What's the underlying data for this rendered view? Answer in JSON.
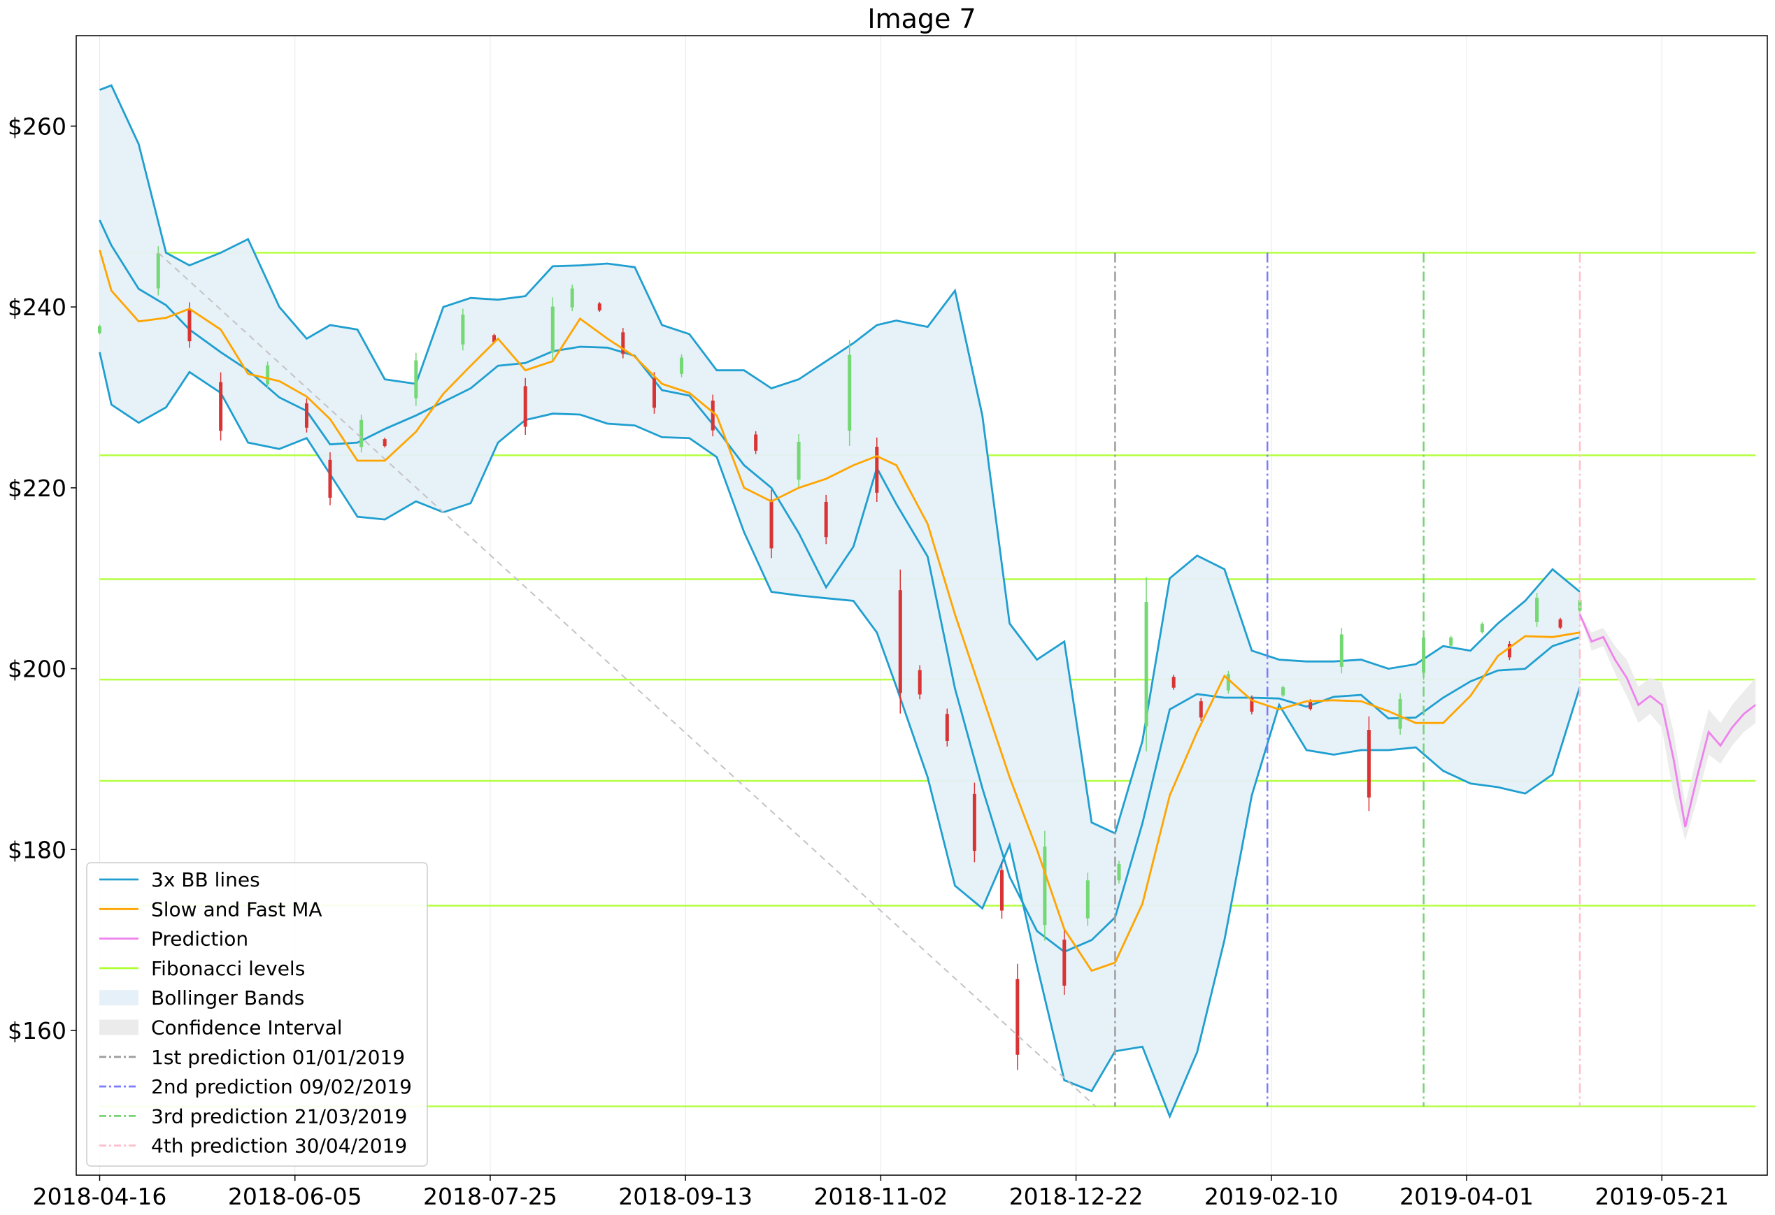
{
  "chart_data": {
    "type": "line",
    "title": "Image 7",
    "xlabel": "",
    "ylabel": "",
    "x_ticks": [
      "2018-04-16",
      "2018-06-05",
      "2018-07-25",
      "2018-09-13",
      "2018-11-02",
      "2018-12-22",
      "2019-02-10",
      "2019-04-01",
      "2019-05-21"
    ],
    "y_ticks": [
      "$160",
      "$180",
      "$200",
      "$220",
      "$240",
      "$260"
    ],
    "xlim": [
      "2018-04-10",
      "2019-06-17"
    ],
    "ylim": [
      144,
      270
    ],
    "grid": "vertical",
    "legend_position": "lower-left",
    "legend": [
      {
        "label": "3x BB lines",
        "kind": "line",
        "color": "#1f9fd0"
      },
      {
        "label": "Slow and Fast MA",
        "kind": "line",
        "color": "#ffa500"
      },
      {
        "label": "Prediction",
        "kind": "line",
        "color": "#ee82ee"
      },
      {
        "label": "Fibonacci levels",
        "kind": "line",
        "color": "#adff2f"
      },
      {
        "label": "Bollinger Bands",
        "kind": "patch",
        "color": "#e6f0f8"
      },
      {
        "label": "Confidence Interval",
        "kind": "patch",
        "color": "#ebebeb"
      },
      {
        "label": "1st prediction 01/01/2019",
        "kind": "dashdot",
        "color": "#9e9e9e"
      },
      {
        "label": "2nd prediction 09/02/2019",
        "kind": "dashdot",
        "color": "#7b7bff"
      },
      {
        "label": "3rd prediction 21/03/2019",
        "kind": "dashdot",
        "color": "#78d278"
      },
      {
        "label": "4th prediction 30/04/2019",
        "kind": "dashdot",
        "color": "#ffc0cb"
      }
    ],
    "fibonacci_levels": [
      246,
      223.6,
      209.9,
      198.8,
      187.6,
      173.8,
      151.6
    ],
    "prediction_markers": [
      "2019-01-01",
      "2019-02-09",
      "2019-03-21",
      "2019-04-30"
    ],
    "trend_line": {
      "from": [
        "2018-05-01",
        246
      ],
      "to": [
        "2018-12-27",
        151.6
      ]
    },
    "series": [
      {
        "name": "3x BB lines",
        "line_x": [
          "2018-04-16",
          "2018-04-19",
          "2018-04-26",
          "2018-05-03",
          "2018-05-09",
          "2018-05-17",
          "2018-05-24",
          "2018-06-01",
          "2018-06-08",
          "2018-06-14",
          "2018-06-21",
          "2018-06-28",
          "2018-07-06",
          "2018-07-13",
          "2018-07-20",
          "2018-07-27",
          "2018-08-03",
          "2018-08-10",
          "2018-08-17",
          "2018-08-24",
          "2018-08-31",
          "2018-09-07",
          "2018-09-14",
          "2018-09-21",
          "2018-09-28",
          "2018-10-05",
          "2018-10-12",
          "2018-10-19",
          "2018-10-26",
          "2018-11-01",
          "2018-11-06",
          "2018-11-14",
          "2018-11-21",
          "2018-11-28",
          "2018-12-05",
          "2018-12-12",
          "2018-12-19",
          "2018-12-26",
          "2019-01-01",
          "2019-01-08",
          "2019-01-15",
          "2019-01-22",
          "2019-01-29",
          "2019-02-05",
          "2019-02-12",
          "2019-02-19",
          "2019-02-26",
          "2019-03-05",
          "2019-03-12",
          "2019-03-19",
          "2019-03-26",
          "2019-04-02",
          "2019-04-09",
          "2019-04-16",
          "2019-04-23",
          "2019-04-30"
        ],
        "upper": [
          264,
          264.5,
          258,
          246,
          244.6,
          246,
          247.5,
          240,
          236.5,
          238,
          237.5,
          232,
          231.5,
          240,
          241,
          240.8,
          241.2,
          244.5,
          244.6,
          244.8,
          244.4,
          238,
          237,
          233,
          233,
          231,
          232,
          234,
          236,
          238,
          238.5,
          237.8,
          241.8,
          228,
          205,
          201,
          203,
          183,
          181.8,
          192,
          210,
          212.5,
          211,
          202,
          201,
          200.8,
          200.8,
          201,
          200,
          200.5,
          202.5,
          202,
          205,
          207.5,
          211,
          208.5
        ],
        "middle": [
          249.6,
          246.8,
          242,
          240.2,
          237.5,
          235,
          233,
          230,
          228.5,
          224.8,
          225,
          226.5,
          228,
          229.5,
          231,
          233.5,
          233.8,
          235.1,
          235.6,
          235.5,
          234.6,
          230.8,
          230.2,
          226.5,
          222.5,
          220,
          215,
          209,
          213.5,
          222.2,
          218.2,
          212.4,
          197.8,
          186.8,
          177,
          171,
          168.7,
          170,
          172.5,
          182.9,
          195.5,
          197.2,
          196.8,
          196.8,
          196.7,
          195.8,
          196.9,
          197.1,
          194.5,
          194.6,
          196.8,
          198.6,
          199.8,
          200,
          202.5,
          203.5
        ],
        "lower": [
          235,
          229.2,
          227.2,
          228.9,
          232.8,
          230.5,
          225,
          224.3,
          225.5,
          221.5,
          216.8,
          216.5,
          218.5,
          217.3,
          218.3,
          225,
          227.5,
          228.2,
          228.1,
          227.1,
          226.9,
          225.6,
          225.5,
          223.4,
          215.1,
          208.5,
          208.1,
          207.8,
          207.5,
          204,
          198,
          188,
          176,
          173.5,
          180.5,
          167.2,
          154.5,
          153.3,
          157.7,
          158.2,
          150.5,
          157.6,
          170,
          186,
          196,
          191,
          190.5,
          191,
          191,
          191.3,
          188.7,
          187.3,
          186.9,
          186.2,
          188.3,
          198
        ]
      },
      {
        "name": "Slow and Fast MA",
        "line_x": [
          "2018-04-16",
          "2018-04-19",
          "2018-04-26",
          "2018-05-03",
          "2018-05-09",
          "2018-05-17",
          "2018-05-24",
          "2018-06-01",
          "2018-06-08",
          "2018-06-14",
          "2018-06-21",
          "2018-06-28",
          "2018-07-06",
          "2018-07-13",
          "2018-07-20",
          "2018-07-27",
          "2018-08-03",
          "2018-08-10",
          "2018-08-17",
          "2018-08-24",
          "2018-08-31",
          "2018-09-07",
          "2018-09-14",
          "2018-09-21",
          "2018-09-28",
          "2018-10-05",
          "2018-10-12",
          "2018-10-19",
          "2018-10-26",
          "2018-11-01",
          "2018-11-06",
          "2018-11-14",
          "2018-11-21",
          "2018-11-28",
          "2018-12-05",
          "2018-12-12",
          "2018-12-19",
          "2018-12-26",
          "2019-01-01",
          "2019-01-08",
          "2019-01-15",
          "2019-01-22",
          "2019-01-29",
          "2019-02-05",
          "2019-02-12",
          "2019-02-19",
          "2019-02-26",
          "2019-03-05",
          "2019-03-12",
          "2019-03-19",
          "2019-03-26",
          "2019-04-02",
          "2019-04-09",
          "2019-04-16",
          "2019-04-23",
          "2019-04-30"
        ],
        "values": [
          246.3,
          241.8,
          238.4,
          238.8,
          239.8,
          237.5,
          232.6,
          231.8,
          230.1,
          227.6,
          223,
          223,
          226.2,
          230.4,
          233.5,
          236.5,
          233,
          234,
          238.7,
          236.5,
          234.5,
          231.5,
          230.5,
          228,
          220,
          218.5,
          220,
          221,
          222.5,
          223.5,
          222.5,
          216,
          206,
          197,
          188,
          180,
          171.2,
          166.6,
          167.5,
          174,
          186,
          193,
          199.2,
          196.5,
          195.5,
          196.4,
          196.5,
          196.4,
          195.3,
          194,
          194,
          197,
          201.4,
          203.6,
          203.5,
          204
        ]
      },
      {
        "name": "Prediction",
        "x": [
          "2019-04-30",
          "2019-05-03",
          "2019-05-06",
          "2019-05-09",
          "2019-05-12",
          "2019-05-15",
          "2019-05-18",
          "2019-05-21",
          "2019-05-24",
          "2019-05-27",
          "2019-05-30",
          "2019-06-02",
          "2019-06-05",
          "2019-06-08",
          "2019-06-11",
          "2019-06-14"
        ],
        "values": [
          206,
          203,
          203.5,
          201,
          199,
          196,
          197,
          196,
          190,
          182.5,
          188,
          193,
          191.5,
          193.5,
          195,
          196
        ],
        "ci_lower": [
          206,
          202,
          202.5,
          199.5,
          197,
          194,
          195,
          193.5,
          186,
          181,
          185.5,
          190.5,
          189.5,
          191.5,
          193,
          194
        ],
        "ci_upper": [
          206,
          204,
          204.5,
          202.5,
          201,
          198,
          199,
          198.5,
          193,
          185,
          190.5,
          195.5,
          194,
          196,
          197.5,
          199
        ]
      },
      {
        "name": "Price candles",
        "type": "candlestick",
        "x": [
          "2018-04-16",
          "2018-05-01",
          "2018-05-09",
          "2018-05-17",
          "2018-05-29",
          "2018-06-08",
          "2018-06-14",
          "2018-06-22",
          "2018-06-28",
          "2018-07-06",
          "2018-07-18",
          "2018-07-26",
          "2018-08-03",
          "2018-08-10",
          "2018-08-15",
          "2018-08-22",
          "2018-08-28",
          "2018-09-05",
          "2018-09-12",
          "2018-09-20",
          "2018-10-01",
          "2018-10-05",
          "2018-10-12",
          "2018-10-19",
          "2018-10-25",
          "2018-11-01",
          "2018-11-07",
          "2018-11-12",
          "2018-11-19",
          "2018-11-26",
          "2018-12-03",
          "2018-12-07",
          "2018-12-14",
          "2018-12-19",
          "2018-12-25",
          "2019-01-02",
          "2019-01-09",
          "2019-01-16",
          "2019-01-23",
          "2019-01-30",
          "2019-02-05",
          "2019-02-13",
          "2019-02-20",
          "2019-02-28",
          "2019-03-07",
          "2019-03-15",
          "2019-03-21",
          "2019-03-28",
          "2019-04-05",
          "2019-04-12",
          "2019-04-19",
          "2019-04-25",
          "2019-04-30"
        ],
        "values": [
          237.5,
          244,
          238,
          229,
          232.5,
          228,
          221,
          226,
          225,
          232,
          237.5,
          236.5,
          229,
          237.5,
          241,
          240,
          236,
          230.5,
          233.5,
          228,
          225,
          216,
          223,
          216.5,
          230.5,
          222,
          203,
          198.5,
          193.5,
          183,
          175.5,
          161.5,
          176,
          167.5,
          174.5,
          177.5,
          200.5,
          198.5,
          195.5,
          198.5,
          196,
          197.5,
          196,
          202,
          189.5,
          195,
          201.5,
          203,
          204.5,
          202,
          206.5,
          205,
          207
        ]
      }
    ]
  }
}
